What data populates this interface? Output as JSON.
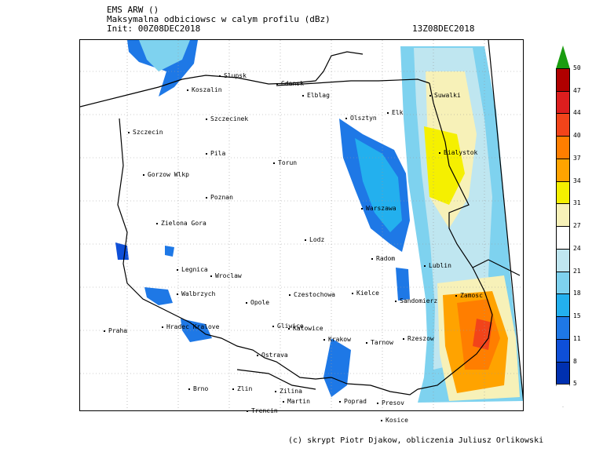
{
  "header": {
    "model": "EMS ARW ()",
    "description": "Maksymalna odbiciowsc w calym profilu (dBz)",
    "init": "Init: 00Z08DEC2018",
    "valid": "13Z08DEC2018"
  },
  "credit": "(c) skrypt Piotr Djakow, obliczenia Juliusz Orlikowski",
  "legend": {
    "unit": "dBz",
    "levels": [
      "50",
      "47",
      "44",
      "40",
      "37",
      "34",
      "31",
      "27",
      "24",
      "21",
      "18",
      "15",
      "11",
      "8",
      "5"
    ],
    "colors": [
      "#1a9c10",
      "#b00000",
      "#dd1e1e",
      "#f2441a",
      "#ff7e00",
      "#ffa300",
      "#f5f000",
      "#f7f1b8",
      "#ffffff",
      "#bfe6f0",
      "#7ed2ef",
      "#23b0ee",
      "#1e78e6",
      "#0e4fd8",
      "#0030b0",
      "#ffffff"
    ]
  },
  "cities": [
    {
      "name": "Slupsk",
      "id": "slupsk"
    },
    {
      "name": "Gdansk",
      "id": "gdansk"
    },
    {
      "name": "Koszalin",
      "id": "koszalin"
    },
    {
      "name": "Elblag",
      "id": "elblag"
    },
    {
      "name": "Suwalki",
      "id": "suwalki"
    },
    {
      "name": "Olsztyn",
      "id": "olsztyn"
    },
    {
      "name": "Elk",
      "id": "elk"
    },
    {
      "name": "Szczecinek",
      "id": "szczecinek"
    },
    {
      "name": "Szczecin",
      "id": "szczecin"
    },
    {
      "name": "Bialystok",
      "id": "bialystok"
    },
    {
      "name": "Pila",
      "id": "pila"
    },
    {
      "name": "Torun",
      "id": "torun"
    },
    {
      "name": "Gorzow Wlkp",
      "id": "gorzow"
    },
    {
      "name": "Poznan",
      "id": "poznan"
    },
    {
      "name": "Warszawa",
      "id": "warszawa"
    },
    {
      "name": "Zielona Gora",
      "id": "zielona"
    },
    {
      "name": "Lodz",
      "id": "lodz"
    },
    {
      "name": "Radom",
      "id": "radom"
    },
    {
      "name": "Lublin",
      "id": "lublin"
    },
    {
      "name": "Legnica",
      "id": "legnica"
    },
    {
      "name": "Wroclaw",
      "id": "wroclaw"
    },
    {
      "name": "Walbrzych",
      "id": "walbrzych"
    },
    {
      "name": "Czestochowa",
      "id": "czestochowa"
    },
    {
      "name": "Kielce",
      "id": "kielce"
    },
    {
      "name": "Opole",
      "id": "opole"
    },
    {
      "name": "Sandomierz",
      "id": "sandomierz"
    },
    {
      "name": "Zamosc",
      "id": "zamosc"
    },
    {
      "name": "Praha",
      "id": "praha"
    },
    {
      "name": "Hradec Kralove",
      "id": "hradec"
    },
    {
      "name": "Gliwice",
      "id": "gliwice"
    },
    {
      "name": "Katowice",
      "id": "katowice"
    },
    {
      "name": "Krakow",
      "id": "krakow"
    },
    {
      "name": "Tarnow",
      "id": "tarnow"
    },
    {
      "name": "Rzeszow",
      "id": "rzeszow"
    },
    {
      "name": "Ostrava",
      "id": "ostrava"
    },
    {
      "name": "Brno",
      "id": "brno"
    },
    {
      "name": "Zlin",
      "id": "zlin"
    },
    {
      "name": "Zilina",
      "id": "zilina"
    },
    {
      "name": "Martin",
      "id": "martin"
    },
    {
      "name": "Poprad",
      "id": "poprad"
    },
    {
      "name": "Presov",
      "id": "presov"
    },
    {
      "name": "Kosice",
      "id": "kosice"
    },
    {
      "name": "Trencin",
      "id": "trencin"
    }
  ]
}
